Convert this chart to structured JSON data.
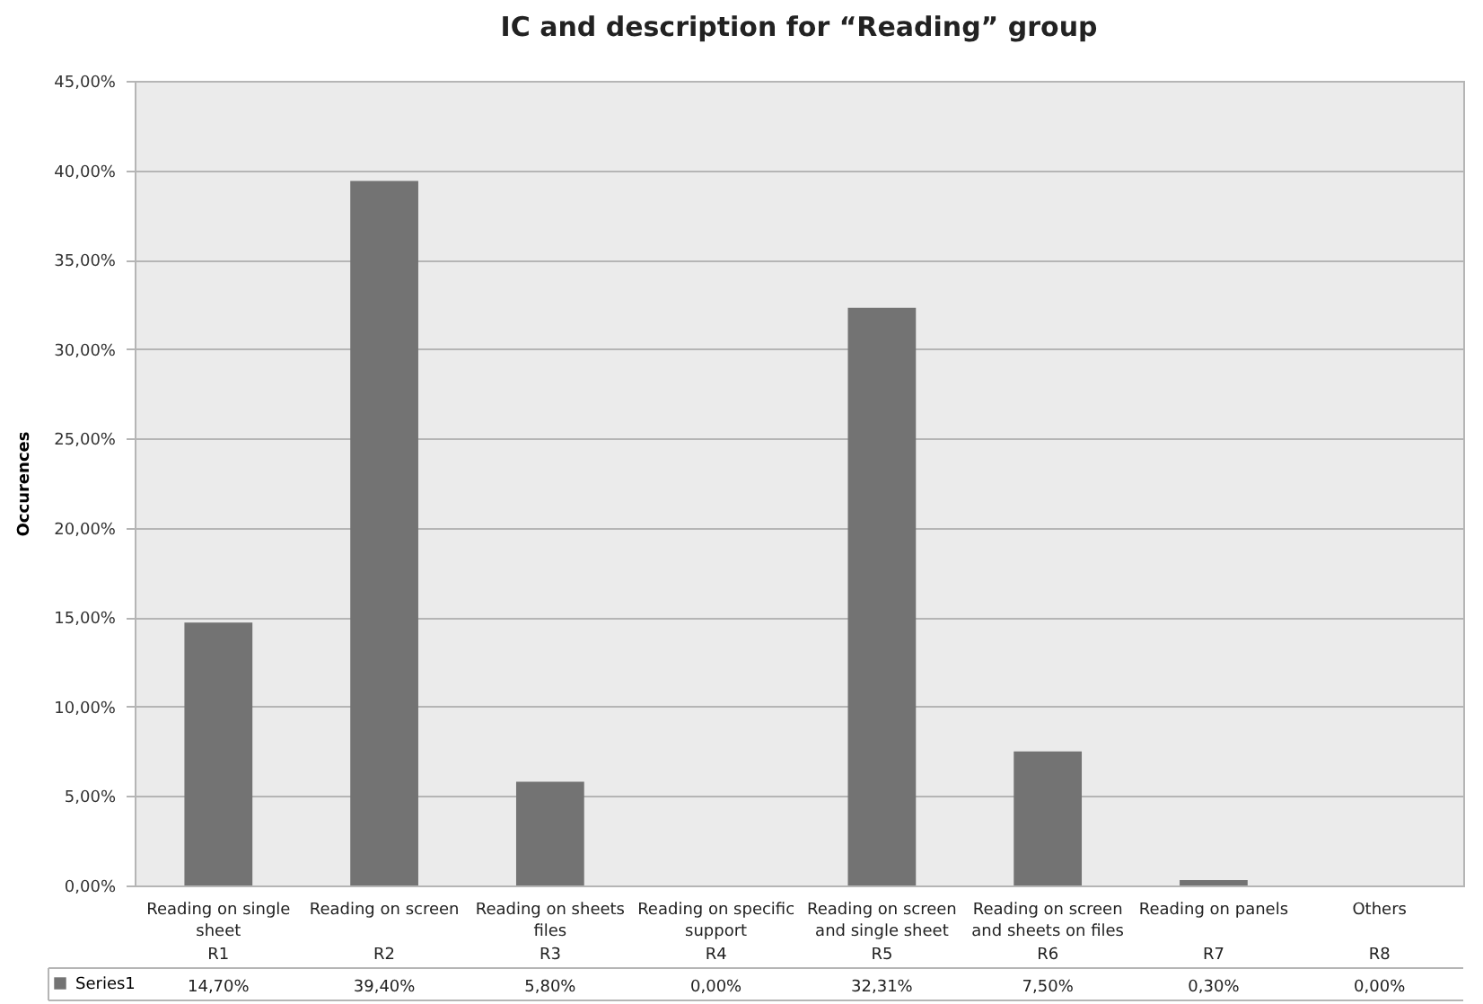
{
  "chart_data": {
    "type": "bar",
    "title": "IC and description for “Reading” group",
    "ylabel": "Occurences",
    "categories": [
      "Reading on single sheet\nR1",
      "Reading on screen\nR2",
      "Reading on sheets files\nR3",
      "Reading on specific support\nR4",
      "Reading on screen and single sheet\nR5",
      "Reading on screen and sheets on files\nR6",
      "Reading on panels\nR7",
      "Others\nR8"
    ],
    "series": [
      {
        "name": "Series1",
        "color": "#737373",
        "values": [
          14.7,
          39.4,
          5.8,
          0,
          32.31,
          7.5,
          0.3,
          0
        ],
        "value_labels": [
          "14,70%",
          "39,40%",
          "5,80%",
          "0,00%",
          "32,31%",
          "7,50%",
          "0,30%",
          "0,00%"
        ]
      }
    ],
    "ylim": [
      0,
      45
    ],
    "yticks": [
      {
        "value": 0,
        "label": "0,00%"
      },
      {
        "value": 5,
        "label": "5,00%"
      },
      {
        "value": 10,
        "label": "10,00%"
      },
      {
        "value": 15,
        "label": "15,00%"
      },
      {
        "value": 20,
        "label": "20,00%"
      },
      {
        "value": 25,
        "label": "25,00%"
      },
      {
        "value": 30,
        "label": "30,00%"
      },
      {
        "value": 35,
        "label": "35,00%"
      },
      {
        "value": 40,
        "label": "40,00%"
      },
      {
        "value": 45,
        "label": "45,00%"
      }
    ],
    "grid": "y",
    "legend": "bottom left"
  }
}
